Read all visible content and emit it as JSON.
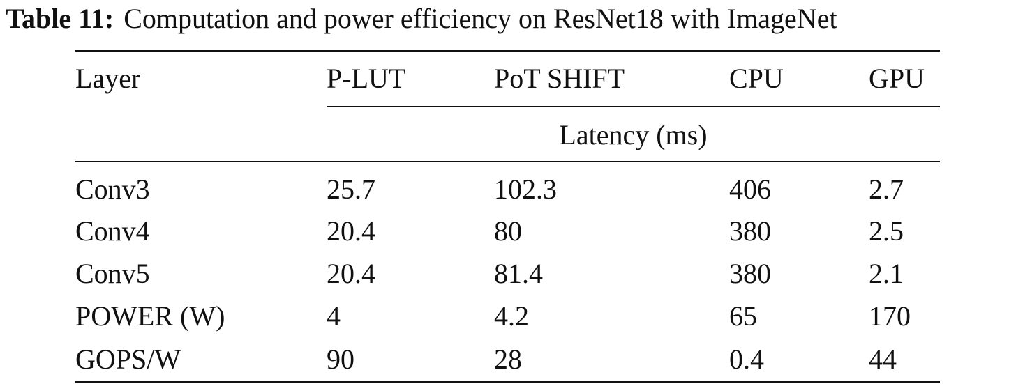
{
  "caption": {
    "label": "Table 11:",
    "text": "Computation and power efficiency on ResNet18 with ImageNet"
  },
  "table": {
    "header": [
      "Layer",
      "P-LUT",
      "PoT SHIFT",
      "CPU",
      "GPU"
    ],
    "subheader": "Latency (ms)",
    "rows": [
      [
        "Conv3",
        "25.7",
        "102.3",
        "406",
        "2.7"
      ],
      [
        "Conv4",
        "20.4",
        "80",
        "380",
        "2.5"
      ],
      [
        "Conv5",
        "20.4",
        "81.4",
        "380",
        "2.1"
      ],
      [
        "POWER (W)",
        "4",
        "4.2",
        "65",
        "170"
      ],
      [
        "GOPS/W",
        "90",
        "28",
        "0.4",
        "44"
      ]
    ]
  }
}
